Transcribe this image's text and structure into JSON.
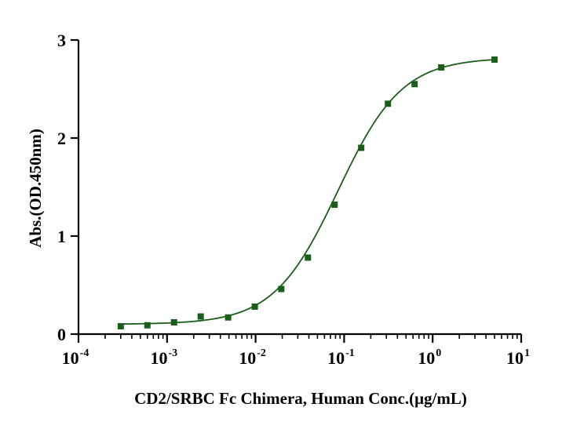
{
  "chart_data": {
    "type": "scatter",
    "title": "",
    "xlabel": "CD2/SRBC Fc Chimera, Human  Conc.(μg/mL)",
    "ylabel": "Abs.(OD.450nm)",
    "x_scale": "log",
    "xlim": [
      0.0001,
      10
    ],
    "ylim": [
      0,
      3
    ],
    "x_ticks": [
      {
        "base": "10",
        "exp": "-4"
      },
      {
        "base": "10",
        "exp": "-3"
      },
      {
        "base": "10",
        "exp": "-2"
      },
      {
        "base": "10",
        "exp": "-1"
      },
      {
        "base": "10",
        "exp": "0"
      },
      {
        "base": "10",
        "exp": "1"
      }
    ],
    "y_ticks": [
      "0",
      "1",
      "2",
      "3"
    ],
    "grid": false,
    "legend": "none",
    "series": [
      {
        "color": "#1a5e1a",
        "marker": "square",
        "fit": "4PL",
        "x": [
          0.0003,
          0.0006,
          0.0012,
          0.0024,
          0.0049,
          0.0098,
          0.0195,
          0.039,
          0.078,
          0.156,
          0.3125,
          0.625,
          1.25,
          5
        ],
        "y": [
          0.08,
          0.09,
          0.12,
          0.18,
          0.17,
          0.28,
          0.46,
          0.78,
          1.32,
          1.9,
          2.35,
          2.55,
          2.72,
          2.8
        ]
      }
    ],
    "fit_params": {
      "bottom": 0.1,
      "top": 2.82,
      "ec50": 0.085,
      "hill": 1.2
    }
  }
}
